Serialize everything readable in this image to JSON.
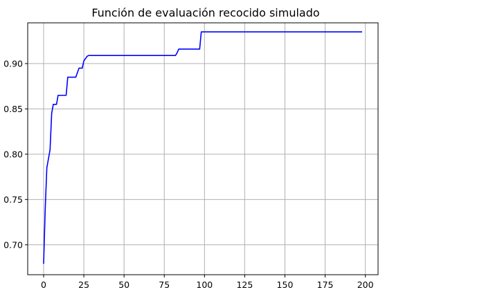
{
  "chart_data": {
    "type": "line",
    "title": "Función de evaluación recocido simulado",
    "xlabel": "",
    "ylabel": "",
    "xlim": [
      -9.9,
      207.9
    ],
    "ylim": [
      0.667,
      0.945
    ],
    "grid": true,
    "xticks": [
      0,
      25,
      50,
      75,
      100,
      125,
      150,
      175,
      200
    ],
    "yticks": [
      0.7,
      0.75,
      0.8,
      0.85,
      0.9
    ],
    "xtick_labels": [
      "0",
      "25",
      "50",
      "75",
      "100",
      "125",
      "150",
      "175",
      "200"
    ],
    "ytick_labels": [
      "0.70",
      "0.75",
      "0.80",
      "0.85",
      "0.90"
    ],
    "series": [
      {
        "name": "",
        "color": "#0000ff",
        "x": [
          0,
          1,
          2,
          3,
          4,
          5,
          6,
          8,
          9,
          10,
          14,
          15,
          19,
          20,
          22,
          23,
          24,
          25,
          27,
          28,
          82,
          83,
          84,
          97,
          98,
          198
        ],
        "y": [
          0.679,
          0.74,
          0.785,
          0.795,
          0.805,
          0.845,
          0.855,
          0.855,
          0.865,
          0.865,
          0.865,
          0.885,
          0.885,
          0.885,
          0.895,
          0.895,
          0.895,
          0.903,
          0.908,
          0.909,
          0.909,
          0.912,
          0.916,
          0.916,
          0.935,
          0.935
        ]
      }
    ]
  }
}
